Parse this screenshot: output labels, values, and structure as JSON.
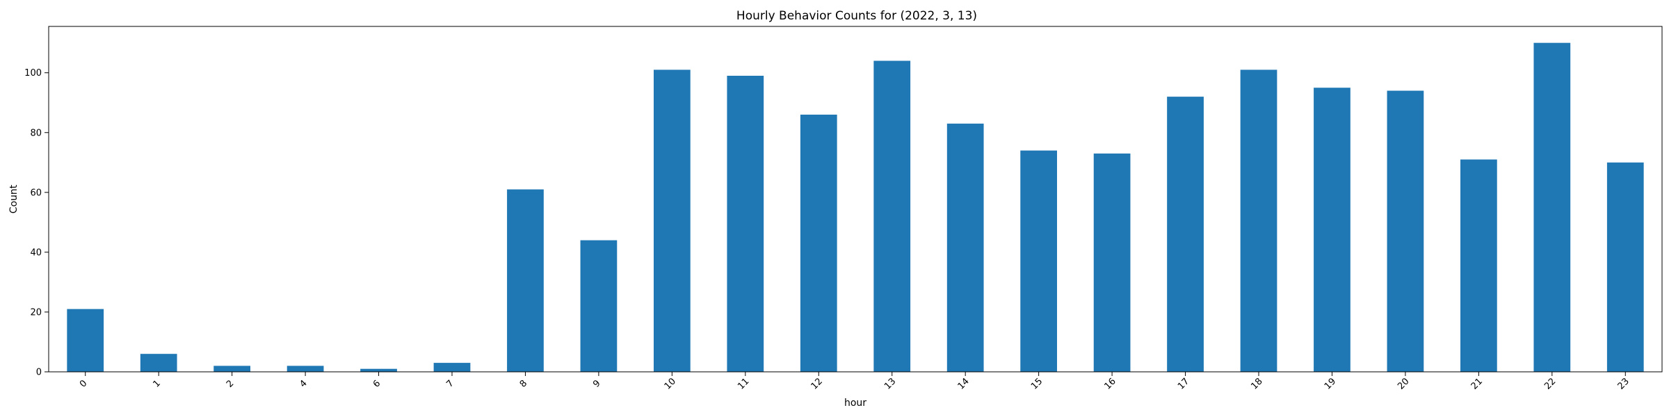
{
  "chart_data": {
    "type": "bar",
    "title": "Hourly Behavior Counts for (2022, 3, 13)",
    "xlabel": "hour",
    "ylabel": "Count",
    "categories": [
      "0",
      "1",
      "2",
      "4",
      "6",
      "7",
      "8",
      "9",
      "10",
      "11",
      "12",
      "13",
      "14",
      "15",
      "16",
      "17",
      "18",
      "19",
      "20",
      "21",
      "22",
      "23"
    ],
    "values": [
      21,
      6,
      2,
      2,
      1,
      3,
      61,
      44,
      101,
      99,
      86,
      104,
      83,
      74,
      73,
      92,
      101,
      95,
      94,
      71,
      110,
      70
    ],
    "ylim": [
      0,
      115.5
    ],
    "yticks": [
      0,
      20,
      40,
      60,
      80,
      100
    ],
    "bar_color": "#1f77b4",
    "grid": false,
    "legend": "none"
  }
}
